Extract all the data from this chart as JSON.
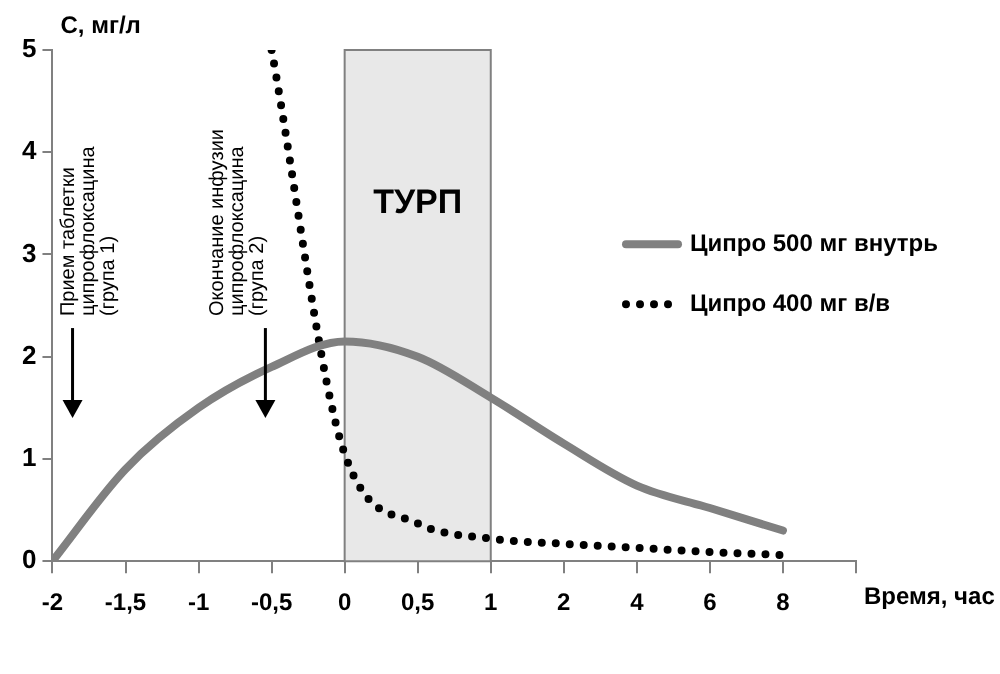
{
  "chart_data": {
    "type": "line",
    "xlabel": "Время, час",
    "ylabel": "С, мг/л",
    "categories": [
      "-2",
      "-1,5",
      "-1",
      "-0,5",
      "0",
      "0,5",
      "1",
      "2",
      "4",
      "6",
      "8",
      null
    ],
    "ylim": [
      0,
      5
    ],
    "yticks": [
      0,
      1,
      2,
      3,
      4,
      5
    ],
    "grid": false,
    "legend": "right",
    "series": [
      {
        "name": "Ципро 500 мг внутрь",
        "color": "#808080",
        "line_style": "solid",
        "values": [
          0,
          0.9,
          1.5,
          1.9,
          2.15,
          2.0,
          1.6,
          1.15,
          0.74,
          0.52,
          0.3,
          null
        ]
      },
      {
        "name": "Ципро 400 мг в/в",
        "color": "#000000",
        "line_style": "dotted",
        "values": [
          null,
          null,
          null,
          5.0,
          1.05,
          0.37,
          0.22,
          0.17,
          0.13,
          0.09,
          0.06,
          null
        ]
      }
    ],
    "bands": [
      {
        "axis": "x",
        "from": "0",
        "to": "1",
        "label": "ТУРП",
        "color": "#e8e8e8"
      }
    ],
    "annotations": [
      "Прием таблетки\nципрофлоксацина\n(група 1)",
      "Окончание инфузии\nципрофлоксацина\n(група 2)"
    ]
  }
}
